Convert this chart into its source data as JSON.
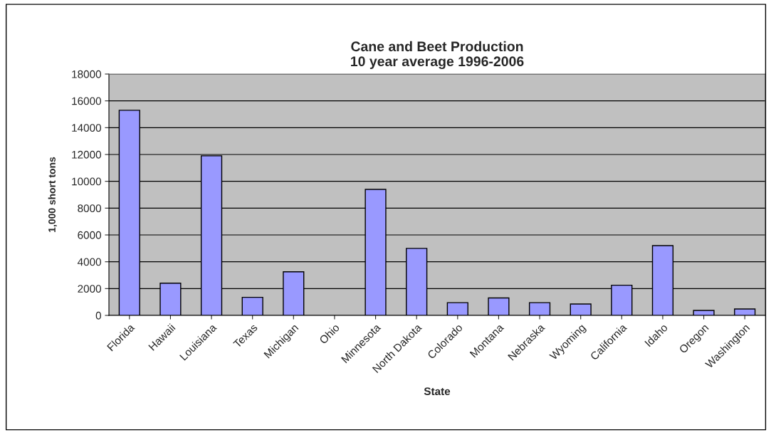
{
  "chart_data": {
    "type": "bar",
    "title": "Cane and Beet Production\n10 year average 1996-2006",
    "xlabel": "State",
    "ylabel": "1,000 short tons",
    "categories": [
      "Florida",
      "Hawaii",
      "Louisiana",
      "Texas",
      "Michigan",
      "Ohio",
      "Minnesota",
      "North Dakota",
      "Colorado",
      "Montana",
      "Nebraska",
      "Wyoming",
      "California",
      "Idaho",
      "Oregon",
      "Washington"
    ],
    "values": [
      15300,
      2400,
      11900,
      1350,
      3250,
      0,
      9400,
      5000,
      950,
      1300,
      950,
      850,
      2250,
      5200,
      370,
      480
    ],
    "color": "#9999ff",
    "ylim": [
      0,
      18000
    ],
    "yticks": [
      0,
      2000,
      4000,
      6000,
      8000,
      10000,
      12000,
      14000,
      16000,
      18000
    ],
    "grid": "y",
    "legend": false
  }
}
